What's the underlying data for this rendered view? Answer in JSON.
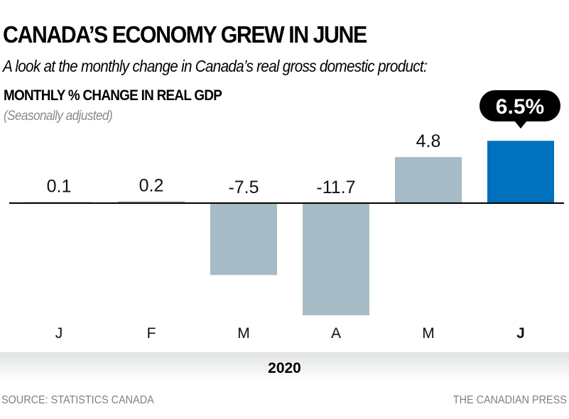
{
  "header": {
    "title": "CANADA’S ECONOMY GREW IN JUNE",
    "subtitle": "A look at the monthly change in Canada’s real gross domestic product:"
  },
  "chart_data": {
    "type": "bar",
    "title": "MONTHLY % CHANGE IN REAL GDP",
    "subtitle": "(Seasonally adjusted)",
    "categories": [
      "J",
      "F",
      "M",
      "A",
      "M",
      "J"
    ],
    "values": [
      0.1,
      0.2,
      -7.5,
      -11.7,
      4.8,
      6.5
    ],
    "value_labels": [
      "0.1",
      "0.2",
      "-7.5",
      "-11.7",
      "4.8",
      "6.5%"
    ],
    "highlight_index": 5,
    "highlight_callout": "6.5%",
    "xlabel": "2020",
    "ylabel": "",
    "ylim": [
      -12,
      7
    ],
    "grid": false,
    "legend": "none",
    "colors": {
      "default": "#a7bbc6",
      "highlight": "#0071bc",
      "baseline": "#000000",
      "callout_bg": "#000000",
      "callout_text": "#ffffff"
    }
  },
  "footer": {
    "source": "SOURCE: STATISTICS CANADA",
    "credit": "THE CANADIAN PRESS"
  }
}
